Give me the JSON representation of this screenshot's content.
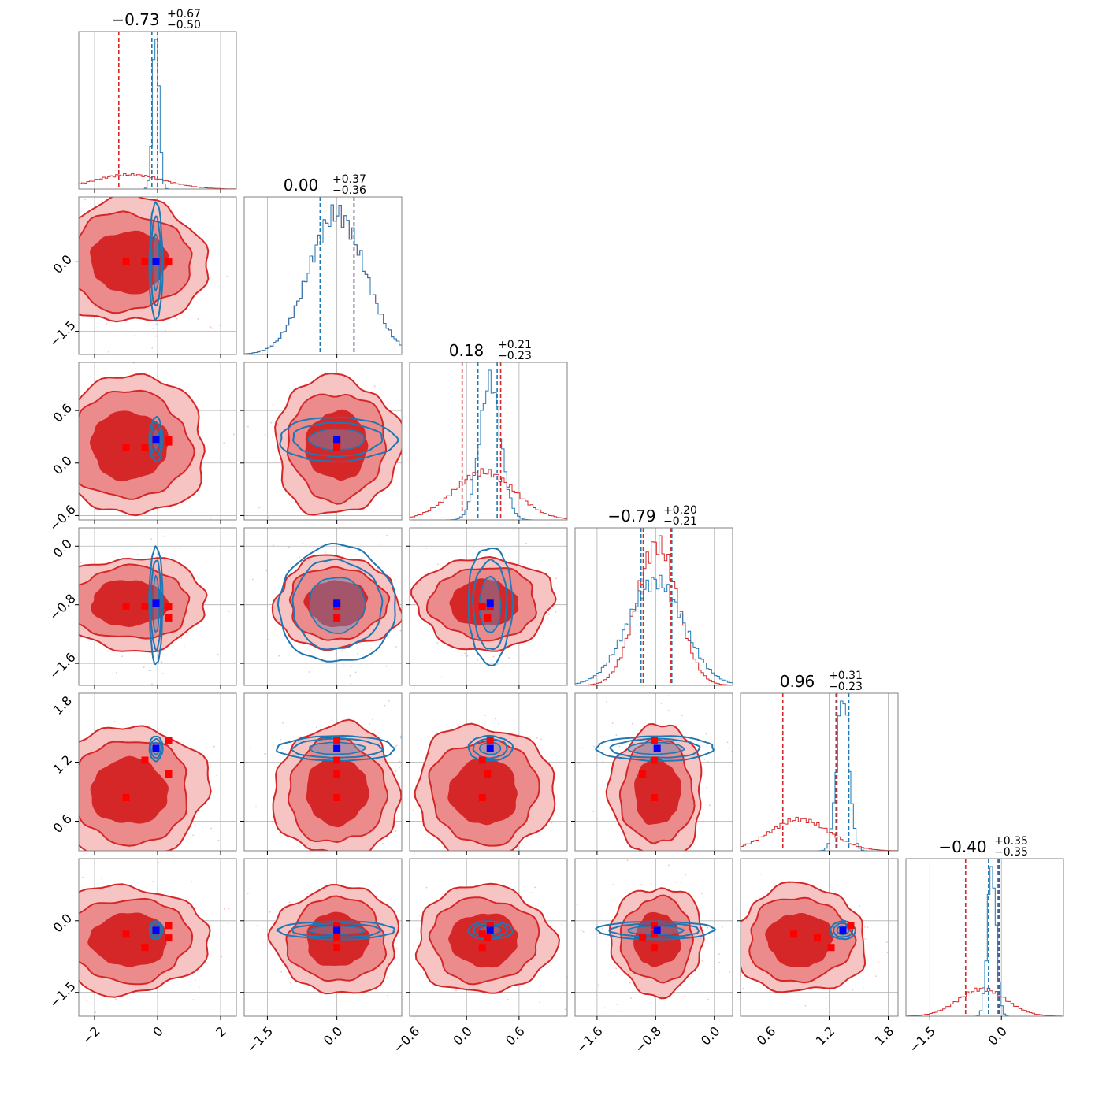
{
  "chart_data": {
    "type": "corner",
    "params": 6,
    "colors": {
      "red": "#d62728",
      "blue": "#1f77b4",
      "marker_red": "#ff0000",
      "marker_blue": "#0000ff",
      "grid": "#b0b0b0"
    },
    "titles": [
      {
        "main": "−0.73",
        "plus": "+0.67",
        "minus": "−0.50"
      },
      {
        "main": "0.00",
        "plus": "+0.37",
        "minus": "−0.36"
      },
      {
        "main": "0.18",
        "plus": "+0.21",
        "minus": "−0.23"
      },
      {
        "main": "−0.79",
        "plus": "+0.20",
        "minus": "−0.21"
      },
      {
        "main": "0.96",
        "plus": "+0.31",
        "minus": "−0.23"
      },
      {
        "main": "−0.40",
        "plus": "+0.35",
        "minus": "−0.35"
      }
    ],
    "ranges": [
      [
        -2.5,
        2.5
      ],
      [
        -2.0,
        1.4
      ],
      [
        -0.65,
        1.15
      ],
      [
        -1.9,
        0.25
      ],
      [
        0.3,
        1.9
      ],
      [
        -2.0,
        1.3
      ]
    ],
    "ticks": [
      {
        "values": [
          -2,
          0,
          2
        ],
        "labels": [
          "−2",
          "0",
          "2"
        ]
      },
      {
        "values": [
          -1.5,
          0.0
        ],
        "labels": [
          "−1.5",
          "0.0"
        ]
      },
      {
        "values": [
          -0.6,
          0.0,
          0.6
        ],
        "labels": [
          "−0.6",
          "0.0",
          "0.6"
        ]
      },
      {
        "values": [
          -1.6,
          -0.8,
          0.0
        ],
        "labels": [
          "−1.6",
          "−0.8",
          "0.0"
        ]
      },
      {
        "values": [
          0.6,
          1.2,
          1.8
        ],
        "labels": [
          "0.6",
          "1.2",
          "1.8"
        ]
      },
      {
        "values": [
          -1.5,
          0.0
        ],
        "labels": [
          "−1.5",
          "0.0"
        ]
      }
    ],
    "red": {
      "mean": [
        -0.9,
        0.0,
        0.2,
        -0.78,
        0.9,
        -0.4
      ],
      "std": [
        1.1,
        0.6,
        0.35,
        0.28,
        0.3,
        0.5
      ],
      "quantiles": [
        [
          -1.23,
          0.0
        ],
        [
          -0.36,
          0.37
        ],
        [
          -0.05,
          0.39
        ],
        [
          -0.97,
          -0.59
        ],
        [
          0.73,
          1.27
        ],
        [
          -0.75,
          -0.05
        ]
      ]
    },
    "blue": {
      "mean": [
        -0.05,
        0.0,
        0.27,
        -0.8,
        1.34,
        -0.2
      ],
      "std": [
        0.1,
        0.6,
        0.12,
        0.38,
        0.06,
        0.09
      ],
      "quantiles": [
        [
          -0.18,
          0.0
        ],
        [
          -0.36,
          0.37
        ],
        [
          0.13,
          0.35
        ],
        [
          -1.0,
          -0.58
        ],
        [
          1.28,
          1.4
        ],
        [
          -0.27,
          -0.07
        ]
      ]
    },
    "truth_blue": [
      -0.05,
      0.0,
      0.27,
      -0.78,
      1.34,
      -0.2
    ],
    "truth_red": [
      [
        -1.0,
        0.0,
        0.18,
        -0.82,
        0.84,
        -0.28
      ],
      [
        -0.4,
        0.0,
        0.18,
        -0.82,
        1.22,
        -0.56
      ],
      [
        0.35,
        0.0,
        0.27,
        -0.82,
        1.42,
        -0.1
      ],
      [
        0.35,
        0.0,
        0.24,
        -0.98,
        1.08,
        -0.36
      ]
    ]
  }
}
